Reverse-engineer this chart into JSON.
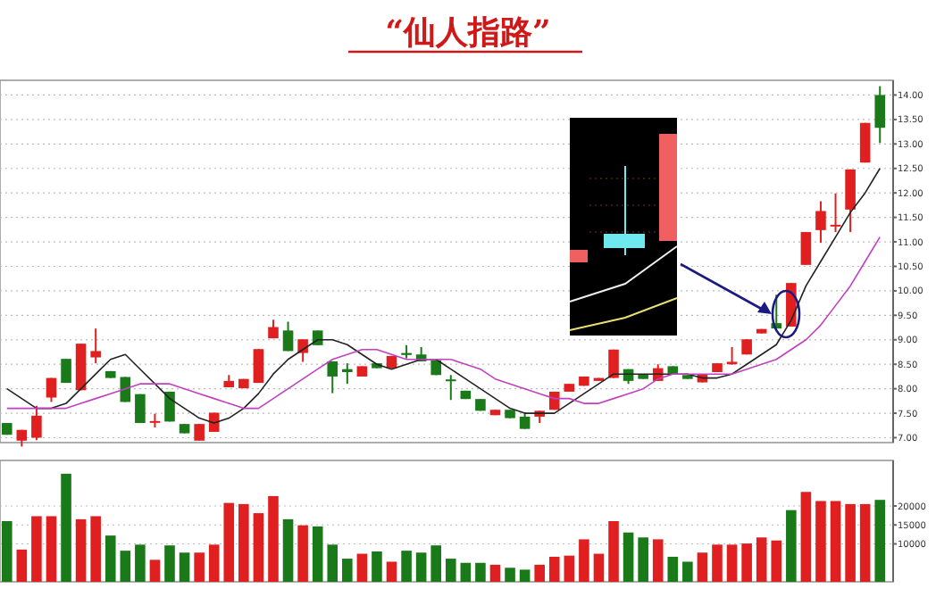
{
  "chart_data": [
    {
      "type": "candlestick",
      "title": "“仙人指路”",
      "categories": [
        null,
        null,
        null,
        null,
        null,
        null,
        null,
        null,
        null,
        null,
        null,
        null,
        null,
        null,
        null,
        null,
        null,
        null,
        null,
        null,
        null,
        null,
        null,
        null,
        null,
        null,
        null,
        null,
        null,
        null,
        null,
        null,
        null,
        null,
        null,
        null,
        null,
        null,
        null,
        null,
        null,
        null,
        null,
        null,
        null,
        null,
        null,
        null,
        null,
        null,
        null,
        null,
        null,
        null,
        null,
        null,
        null,
        null,
        null,
        null
      ],
      "ohlc": [
        [
          7.3,
          7.3,
          7.06,
          7.06
        ],
        [
          6.94,
          7.16,
          6.82,
          7.16
        ],
        [
          7.0,
          7.65,
          6.95,
          7.45
        ],
        [
          7.82,
          8.22,
          7.73,
          8.22
        ],
        [
          8.61,
          8.61,
          8.12,
          8.12
        ],
        [
          7.97,
          8.92,
          7.97,
          8.92
        ],
        [
          8.64,
          9.23,
          8.52,
          8.77
        ],
        [
          8.36,
          8.36,
          8.22,
          8.22
        ],
        [
          8.24,
          8.24,
          7.73,
          7.73
        ],
        [
          7.89,
          7.89,
          7.3,
          7.3
        ],
        [
          7.32,
          7.49,
          7.21,
          7.34
        ],
        [
          7.94,
          7.94,
          7.33,
          7.33
        ],
        [
          7.28,
          7.28,
          7.09,
          7.09
        ],
        [
          6.94,
          7.28,
          6.94,
          7.28
        ],
        [
          7.12,
          7.51,
          7.12,
          7.51
        ],
        [
          8.03,
          8.28,
          8.03,
          8.16
        ],
        [
          8.01,
          8.2,
          8.01,
          8.2
        ],
        [
          8.12,
          8.81,
          8.12,
          8.81
        ],
        [
          9.03,
          9.41,
          9.03,
          9.26
        ],
        [
          9.19,
          9.37,
          8.77,
          8.77
        ],
        [
          8.73,
          9.01,
          8.55,
          9.01
        ],
        [
          9.19,
          9.19,
          8.89,
          8.89
        ],
        [
          8.56,
          8.56,
          7.91,
          8.25
        ],
        [
          8.4,
          8.52,
          8.1,
          8.34
        ],
        [
          8.25,
          8.46,
          8.25,
          8.46
        ],
        [
          8.52,
          8.52,
          8.42,
          8.42
        ],
        [
          8.42,
          8.67,
          8.42,
          8.67
        ],
        [
          8.73,
          8.89,
          8.62,
          8.69
        ],
        [
          8.7,
          8.85,
          8.56,
          8.56
        ],
        [
          8.58,
          8.58,
          8.28,
          8.28
        ],
        [
          8.19,
          8.28,
          7.77,
          8.17
        ],
        [
          7.96,
          7.96,
          7.79,
          7.79
        ],
        [
          7.79,
          7.79,
          7.55,
          7.55
        ],
        [
          7.46,
          7.57,
          7.46,
          7.57
        ],
        [
          7.57,
          7.57,
          7.4,
          7.4
        ],
        [
          7.43,
          7.52,
          7.18,
          7.18
        ],
        [
          7.43,
          7.55,
          7.3,
          7.55
        ],
        [
          7.57,
          7.94,
          7.57,
          7.94
        ],
        [
          7.94,
          8.1,
          7.94,
          8.1
        ],
        [
          8.06,
          8.25,
          8.06,
          8.25
        ],
        [
          8.16,
          8.22,
          8.16,
          8.22
        ],
        [
          8.22,
          8.8,
          8.22,
          8.8
        ],
        [
          8.4,
          8.4,
          8.1,
          8.16
        ],
        [
          8.3,
          8.3,
          8.2,
          8.2
        ],
        [
          8.16,
          8.5,
          8.16,
          8.42
        ],
        [
          8.46,
          8.46,
          8.31,
          8.31
        ],
        [
          8.28,
          8.28,
          8.2,
          8.2
        ],
        [
          8.13,
          8.3,
          8.13,
          8.3
        ],
        [
          8.34,
          8.52,
          8.34,
          8.52
        ],
        [
          8.5,
          8.85,
          8.49,
          8.55
        ],
        [
          8.7,
          9.01,
          8.7,
          9.01
        ],
        [
          9.13,
          9.22,
          9.13,
          9.22
        ],
        [
          9.34,
          9.92,
          9.23,
          9.23
        ],
        [
          9.27,
          10.16,
          9.27,
          10.16
        ],
        [
          10.53,
          11.2,
          10.53,
          11.2
        ],
        [
          11.24,
          11.83,
          10.98,
          11.63
        ],
        [
          11.33,
          11.99,
          11.2,
          11.35
        ],
        [
          11.66,
          12.48,
          11.2,
          12.48
        ],
        [
          12.62,
          13.43,
          12.62,
          13.43
        ],
        [
          14.0,
          14.18,
          13.02,
          13.33
        ]
      ],
      "colors": [
        "#1a7a1a",
        "#e02020",
        "#e02020",
        "#e02020",
        "#1a7a1a",
        "#e02020",
        "#e02020",
        "#1a7a1a",
        "#1a7a1a",
        "#1a7a1a",
        "#e02020",
        "#1a7a1a",
        "#1a7a1a",
        "#e02020",
        "#e02020",
        "#e02020",
        "#e02020",
        "#e02020",
        "#e02020",
        "#1a7a1a",
        "#e02020",
        "#1a7a1a",
        "#1a7a1a",
        "#1a7a1a",
        "#e02020",
        "#1a7a1a",
        "#e02020",
        "#1a7a1a",
        "#1a7a1a",
        "#1a7a1a",
        "#1a7a1a",
        "#1a7a1a",
        "#1a7a1a",
        "#e02020",
        "#1a7a1a",
        "#1a7a1a",
        "#e02020",
        "#e02020",
        "#e02020",
        "#e02020",
        "#e02020",
        "#e02020",
        "#1a7a1a",
        "#1a7a1a",
        "#e02020",
        "#1a7a1a",
        "#1a7a1a",
        "#e02020",
        "#e02020",
        "#e02020",
        "#e02020",
        "#e02020",
        "#1a7a1a",
        "#e02020",
        "#e02020",
        "#e02020",
        "#e02020",
        "#e02020",
        "#e02020",
        "#1a7a1a"
      ],
      "series": [
        {
          "type": "line",
          "color": "#222222",
          "values": [
            8.0,
            7.8,
            7.6,
            7.6,
            7.7,
            8.0,
            8.3,
            8.6,
            8.7,
            8.4,
            8.1,
            7.8,
            7.6,
            7.4,
            7.3,
            7.4,
            7.6,
            7.9,
            8.3,
            8.6,
            8.8,
            9.0,
            9.0,
            8.9,
            8.7,
            8.5,
            8.4,
            8.5,
            8.6,
            8.6,
            8.4,
            8.2,
            8.0,
            7.8,
            7.6,
            7.5,
            7.5,
            7.5,
            7.7,
            7.9,
            8.1,
            8.3,
            8.3,
            8.3,
            8.3,
            8.3,
            8.3,
            8.22,
            8.22,
            8.3,
            8.5,
            8.7,
            8.9,
            9.4,
            10.1,
            10.6,
            11.1,
            11.6,
            12.0,
            12.5
          ]
        },
        {
          "type": "line",
          "color": "#c040c0",
          "values": [
            7.6,
            7.6,
            7.6,
            7.6,
            7.6,
            7.7,
            7.8,
            7.9,
            8.0,
            8.1,
            8.1,
            8.1,
            8.0,
            7.9,
            7.8,
            7.7,
            7.6,
            7.6,
            7.8,
            8.0,
            8.2,
            8.4,
            8.6,
            8.7,
            8.8,
            8.8,
            8.7,
            8.6,
            8.6,
            8.6,
            8.6,
            8.5,
            8.4,
            8.2,
            8.1,
            8.0,
            7.9,
            7.8,
            7.8,
            7.7,
            7.7,
            7.8,
            7.9,
            8.0,
            8.2,
            8.3,
            8.3,
            8.3,
            8.3,
            8.3,
            8.4,
            8.5,
            8.6,
            8.8,
            9.0,
            9.3,
            9.7,
            10.1,
            10.6,
            11.1
          ]
        }
      ],
      "ylim": [
        6.9,
        14.3
      ],
      "yticks": [
        {
          "value": 7,
          "label": "7.00"
        },
        {
          "value": 7.5,
          "label": "7.50"
        },
        {
          "value": 8,
          "label": "8.00"
        },
        {
          "value": 8.5,
          "label": "8.50"
        },
        {
          "value": 9,
          "label": "9.00"
        },
        {
          "value": 9.5,
          "label": "9.50"
        },
        {
          "value": 10,
          "label": "10.00"
        },
        {
          "value": 10.5,
          "label": "10.50"
        },
        {
          "value": 11,
          "label": "11.00"
        },
        {
          "value": 11.5,
          "label": "11.50"
        },
        {
          "value": 12,
          "label": "12.00"
        },
        {
          "value": 12.5,
          "label": "12.50"
        },
        {
          "value": 13,
          "label": "13.00"
        },
        {
          "value": 13.5,
          "label": "13.50"
        },
        {
          "value": 14,
          "label": "14.00"
        }
      ],
      "grid": "y"
    },
    {
      "type": "bar",
      "categories": [
        null,
        null,
        null,
        null,
        null,
        null,
        null,
        null,
        null,
        null,
        null,
        null,
        null,
        null,
        null,
        null,
        null,
        null,
        null,
        null,
        null,
        null,
        null,
        null,
        null,
        null,
        null,
        null,
        null,
        null,
        null,
        null,
        null,
        null,
        null,
        null,
        null,
        null,
        null,
        null,
        null,
        null,
        null,
        null,
        null,
        null,
        null,
        null,
        null,
        null,
        null,
        null,
        null,
        null,
        null,
        null,
        null,
        null,
        null,
        null
      ],
      "values": [
        16000,
        8500,
        17300,
        17300,
        28500,
        16500,
        17300,
        12200,
        8200,
        9800,
        5800,
        9600,
        7700,
        7700,
        9800,
        20800,
        20500,
        18100,
        22600,
        16500,
        14900,
        14600,
        9800,
        6100,
        7400,
        8000,
        5300,
        8200,
        7700,
        9600,
        6100,
        5000,
        5000,
        4500,
        3700,
        3200,
        4500,
        6600,
        6900,
        11200,
        7400,
        16000,
        13000,
        11700,
        11200,
        6600,
        5300,
        7700,
        9800,
        9800,
        10100,
        11700,
        10900,
        18900,
        23700,
        21300,
        21300,
        20500,
        20500,
        21600
      ],
      "colors": [
        "#1a7a1a",
        "#e02020",
        "#e02020",
        "#e02020",
        "#1a7a1a",
        "#e02020",
        "#e02020",
        "#1a7a1a",
        "#1a7a1a",
        "#1a7a1a",
        "#e02020",
        "#1a7a1a",
        "#1a7a1a",
        "#e02020",
        "#e02020",
        "#e02020",
        "#e02020",
        "#e02020",
        "#e02020",
        "#1a7a1a",
        "#e02020",
        "#1a7a1a",
        "#1a7a1a",
        "#1a7a1a",
        "#e02020",
        "#1a7a1a",
        "#e02020",
        "#1a7a1a",
        "#1a7a1a",
        "#1a7a1a",
        "#1a7a1a",
        "#1a7a1a",
        "#1a7a1a",
        "#e02020",
        "#1a7a1a",
        "#1a7a1a",
        "#e02020",
        "#e02020",
        "#e02020",
        "#e02020",
        "#e02020",
        "#e02020",
        "#1a7a1a",
        "#1a7a1a",
        "#e02020",
        "#1a7a1a",
        "#1a7a1a",
        "#e02020",
        "#e02020",
        "#e02020",
        "#e02020",
        "#e02020",
        "#e02020",
        "#1a7a1a",
        "#e02020",
        "#e02020",
        "#e02020",
        "#e02020",
        "#e02020",
        "#1a7a1a"
      ],
      "ylim": [
        0,
        32000
      ],
      "yticks": [
        10000,
        15000,
        20000
      ],
      "grid": "y"
    }
  ]
}
